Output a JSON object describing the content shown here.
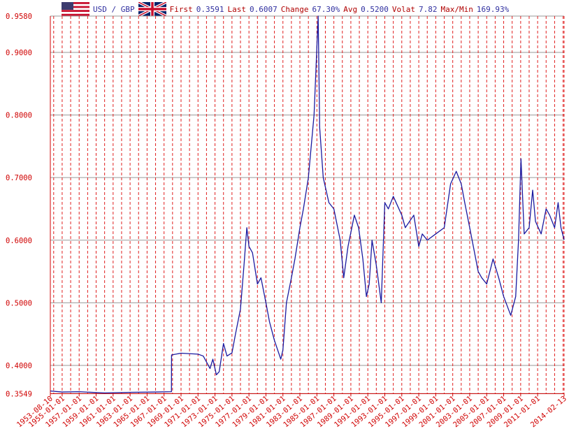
{
  "chart_data": {
    "type": "line",
    "title": "USD / GBP",
    "stats": [
      {
        "label": "First",
        "value": "0.3591"
      },
      {
        "label": "Last",
        "value": "0.6007"
      },
      {
        "label": "Change",
        "value": "67.30%"
      },
      {
        "label": "Avg",
        "value": "0.5200"
      },
      {
        "label": "Volat",
        "value": "7.82"
      },
      {
        "label": "Max/Min",
        "value": "169.93%"
      }
    ],
    "x": [
      "1953-08-10",
      "1955-01-01",
      "1957-01-01",
      "1960-01-01",
      "1963-01-01",
      "1966-01-01",
      "1967-11-15",
      "1967-11-20",
      "1969-01-01",
      "1971-01-01",
      "1971-08-15",
      "1972-06-01",
      "1972-10-01",
      "1973-03-01",
      "1973-07-01",
      "1974-01-01",
      "1974-06-01",
      "1975-01-01",
      "1975-06-01",
      "1976-01-01",
      "1976-06-01",
      "1976-10-01",
      "1977-01-01",
      "1977-06-01",
      "1978-01-01",
      "1978-06-01",
      "1979-01-01",
      "1979-06-01",
      "1980-01-01",
      "1980-10-01",
      "1981-01-01",
      "1981-06-01",
      "1982-01-01",
      "1982-06-01",
      "1983-01-01",
      "1983-06-01",
      "1984-01-01",
      "1984-09-01",
      "1985-02-25",
      "1985-05-01",
      "1985-10-01",
      "1986-06-01",
      "1987-01-01",
      "1987-10-01",
      "1988-03-01",
      "1988-09-01",
      "1989-06-01",
      "1989-12-01",
      "1990-06-01",
      "1990-11-01",
      "1991-03-01",
      "1991-07-01",
      "1992-01-01",
      "1992-08-01",
      "1993-01-01",
      "1993-06-01",
      "1994-01-01",
      "1995-01-01",
      "1995-06-01",
      "1996-06-01",
      "1997-01-01",
      "1997-06-01",
      "1998-01-01",
      "1999-01-01",
      "2000-01-01",
      "2000-10-01",
      "2001-06-01",
      "2002-01-01",
      "2002-06-01",
      "2003-01-01",
      "2004-01-01",
      "2004-06-01",
      "2005-01-01",
      "2005-10-01",
      "2006-06-01",
      "2007-01-01",
      "2007-11-01",
      "2008-06-01",
      "2008-10-01",
      "2009-01-15",
      "2009-06-01",
      "2010-01-01",
      "2010-06-01",
      "2010-10-01",
      "2011-06-01",
      "2012-01-01",
      "2012-06-01",
      "2013-01-01",
      "2013-06-01",
      "2013-10-01",
      "2014-02-13"
    ],
    "series": [
      {
        "name": "USD / GBP",
        "color": "#1a1aa0",
        "values": [
          0.3591,
          0.3575,
          0.358,
          0.356,
          0.357,
          0.3575,
          0.358,
          0.4167,
          0.4195,
          0.418,
          0.415,
          0.395,
          0.41,
          0.385,
          0.39,
          0.435,
          0.415,
          0.42,
          0.45,
          0.49,
          0.56,
          0.62,
          0.59,
          0.58,
          0.53,
          0.54,
          0.5,
          0.47,
          0.44,
          0.41,
          0.425,
          0.5,
          0.54,
          0.57,
          0.62,
          0.65,
          0.7,
          0.8,
          0.958,
          0.78,
          0.7,
          0.66,
          0.65,
          0.6,
          0.54,
          0.59,
          0.64,
          0.62,
          0.57,
          0.51,
          0.53,
          0.6,
          0.56,
          0.5,
          0.66,
          0.65,
          0.67,
          0.64,
          0.62,
          0.64,
          0.59,
          0.61,
          0.6,
          0.61,
          0.62,
          0.69,
          0.71,
          0.69,
          0.66,
          0.62,
          0.55,
          0.54,
          0.53,
          0.57,
          0.54,
          0.51,
          0.48,
          0.51,
          0.6,
          0.73,
          0.61,
          0.62,
          0.68,
          0.63,
          0.61,
          0.65,
          0.64,
          0.62,
          0.66,
          0.62,
          0.6007
        ]
      }
    ],
    "xlim": [
      "1953-08-10",
      "2014-02-13"
    ],
    "xticks": [
      "1953-08-10",
      "1955-01-01",
      "1957-01-01",
      "1959-01-01",
      "1961-01-01",
      "1963-01-01",
      "1965-01-01",
      "1967-01-01",
      "1969-01-01",
      "1971-01-01",
      "1973-01-01",
      "1975-01-01",
      "1977-01-01",
      "1979-01-01",
      "1981-01-01",
      "1983-01-01",
      "1985-01-01",
      "1987-01-01",
      "1989-01-01",
      "1991-01-01",
      "1993-01-01",
      "1995-01-01",
      "1997-01-01",
      "1999-01-01",
      "2001-01-01",
      "2003-01-01",
      "2005-01-01",
      "2007-01-01",
      "2009-01-01",
      "2011-01-01",
      "2014-02-13"
    ],
    "x_minor_ticks": [
      "1954-01-01",
      "1956-01-01",
      "1958-01-01",
      "1960-01-01",
      "1962-01-01",
      "1964-01-01",
      "1966-01-01",
      "1968-01-01",
      "1970-01-01",
      "1972-01-01",
      "1974-01-01",
      "1976-01-01",
      "1978-01-01",
      "1980-01-01",
      "1982-01-01",
      "1984-01-01",
      "1986-01-01",
      "1988-01-01",
      "1990-01-01",
      "1992-01-01",
      "1994-01-01",
      "1996-01-01",
      "1998-01-01",
      "2000-01-01",
      "2002-01-01",
      "2004-01-01",
      "2006-01-01",
      "2008-01-01",
      "2010-01-01",
      "2012-01-01",
      "2013-01-01",
      "2014-01-01"
    ],
    "ylim": [
      0.3549,
      0.958
    ],
    "yticks": [
      0.3549,
      {
        "value": 0.4,
        "label": "0.4000"
      },
      {
        "value": 0.5,
        "label": "0.5000"
      },
      {
        "value": 0.6,
        "label": "0.6000"
      },
      {
        "value": 0.7,
        "label": "0.7000"
      },
      {
        "value": 0.8,
        "label": "0.8000"
      },
      {
        "value": 0.9,
        "label": "0.9000"
      },
      {
        "value": 0.958,
        "label": "0.9580"
      }
    ],
    "grid": true
  }
}
